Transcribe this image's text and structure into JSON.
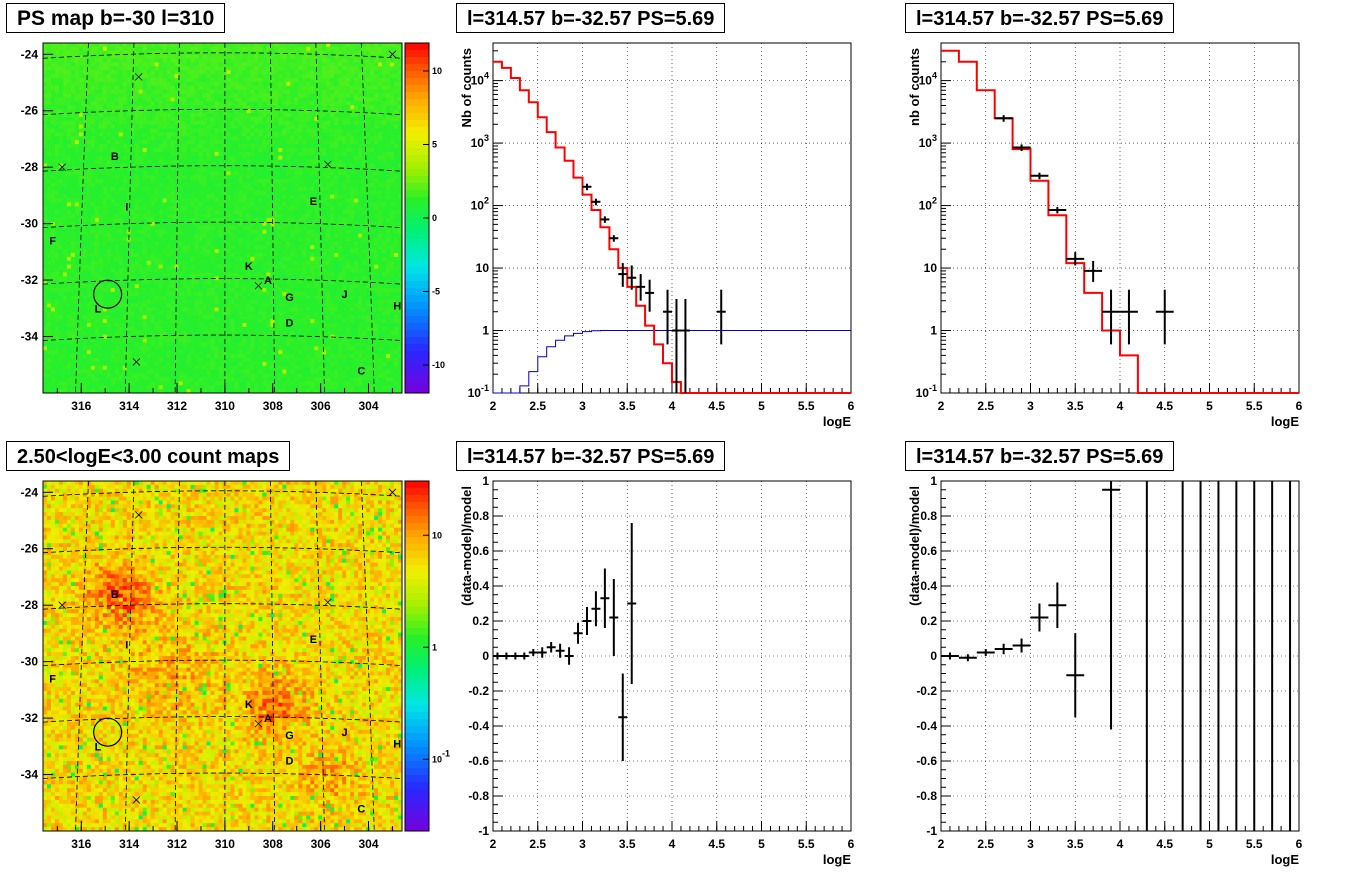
{
  "titles": {
    "map_ps": "PS map b=-30 l=310",
    "map_counts": "2.50<logE<3.00 count maps",
    "spec_a": "l=314.57 b=-32.57 PS=5.69",
    "spec_b": "l=314.57 b=-32.57 PS=5.69",
    "res_a": "l=314.57 b=-32.57 PS=5.69",
    "res_b": "l=314.57 b=-32.57 PS=5.69"
  },
  "maps": {
    "x_ticks": [
      "316",
      "314",
      "312",
      "310",
      "308",
      "306",
      "304"
    ],
    "y_ticks": [
      "-24",
      "-26",
      "-28",
      "-30",
      "-32",
      "-34"
    ],
    "xlim": [
      317.6,
      302.6
    ],
    "ylim": [
      -36,
      -23.6
    ],
    "ps_colorbar_ticks": [
      "10",
      "5",
      "0",
      "-5",
      "-10"
    ],
    "counts_colorbar_ticks": [
      "10",
      "1",
      "10-1"
    ],
    "sources": [
      {
        "label": "B",
        "l": 314.6,
        "b": -27.6
      },
      {
        "label": "I",
        "l": 314.1,
        "b": -29.4
      },
      {
        "label": "E",
        "l": 306.3,
        "b": -29.2
      },
      {
        "label": "F",
        "l": 317.2,
        "b": -30.6
      },
      {
        "label": "K",
        "l": 309.0,
        "b": -31.5
      },
      {
        "label": "A",
        "l": 308.2,
        "b": -32.0
      },
      {
        "label": "G",
        "l": 307.3,
        "b": -32.6
      },
      {
        "label": "J",
        "l": 305.0,
        "b": -32.5
      },
      {
        "label": "H",
        "l": 302.8,
        "b": -32.9
      },
      {
        "label": "D",
        "l": 307.3,
        "b": -33.5
      },
      {
        "label": "L",
        "l": 315.3,
        "b": -33.0
      },
      {
        "label": "C",
        "l": 304.3,
        "b": -35.2
      }
    ],
    "crosses": [
      {
        "l": 313.6,
        "b": -24.8
      },
      {
        "l": 303.0,
        "b": -24.0
      },
      {
        "l": 316.8,
        "b": -28.0
      },
      {
        "l": 305.7,
        "b": -27.9
      },
      {
        "l": 308.6,
        "b": -32.2
      },
      {
        "l": 313.7,
        "b": -34.9
      }
    ],
    "circle": {
      "l": 314.9,
      "b": -32.5
    }
  },
  "spectra": {
    "ylabel_a": "Nb of counts",
    "ylabel_b": "nb of counts",
    "xlabel": "logE",
    "xlim": [
      2,
      6
    ],
    "x_ticks": [
      "2",
      "2.5",
      "3",
      "3.5",
      "4",
      "4.5",
      "5",
      "5.5",
      "6"
    ],
    "y_ticks": [
      "10-1",
      "1",
      "10",
      "102",
      "103",
      "104"
    ],
    "ylim": [
      0.1,
      40000
    ],
    "colors": {
      "model": "#ff0000",
      "data": "#000000",
      "flat": "#0000cc"
    }
  },
  "residuals": {
    "ylabel": "(data-model)/model",
    "xlabel": "logE",
    "xlim": [
      2,
      6
    ],
    "ylim": [
      -1,
      1
    ],
    "x_ticks": [
      "2",
      "2.5",
      "3",
      "3.5",
      "4",
      "4.5",
      "5",
      "5.5",
      "6"
    ],
    "y_ticks": [
      "1",
      "0.8",
      "0.6",
      "0.4",
      "0.2",
      "0",
      "-0.2",
      "-0.4",
      "-0.6",
      "-0.8",
      "-1"
    ]
  },
  "chart_data": [
    {
      "type": "line",
      "name": "spectrum_fine",
      "xlabel": "logE",
      "ylabel": "Nb of counts",
      "xlim": [
        2,
        6
      ],
      "ylim": [
        0.1,
        40000
      ],
      "log_y": true,
      "grid": true,
      "model_step": {
        "edges": [
          2.0,
          2.1,
          2.2,
          2.3,
          2.4,
          2.5,
          2.6,
          2.7,
          2.8,
          2.9,
          3.0,
          3.1,
          3.2,
          3.3,
          3.4,
          3.5,
          3.6,
          3.7,
          3.8,
          3.9,
          4.0,
          4.1,
          4.2,
          6.0
        ],
        "values": [
          20000,
          16000,
          11000,
          7000,
          4500,
          2600,
          1500,
          850,
          520,
          280,
          150,
          85,
          45,
          20,
          10,
          5,
          2.5,
          1.2,
          0.6,
          0.3,
          0.15,
          0.1,
          0.1
        ]
      },
      "flat_step": {
        "edges": [
          2.0,
          2.3,
          2.4,
          2.5,
          2.6,
          2.7,
          2.8,
          2.9,
          3.0,
          3.1,
          3.2,
          6.0
        ],
        "values": [
          0.1,
          0.13,
          0.22,
          0.38,
          0.55,
          0.7,
          0.82,
          0.9,
          0.96,
          0.99,
          1.0
        ]
      },
      "data_points": [
        {
          "x": 3.05,
          "y": 200,
          "xerr": 0.05
        },
        {
          "x": 3.15,
          "y": 115,
          "xerr": 0.05
        },
        {
          "x": 3.25,
          "y": 60,
          "xerr": 0.05
        },
        {
          "x": 3.35,
          "y": 30,
          "xerr": 0.05
        },
        {
          "x": 3.45,
          "y": 8,
          "xerr": 0.05,
          "lo": 5,
          "hi": 12
        },
        {
          "x": 3.55,
          "y": 7,
          "xerr": 0.05,
          "lo": 4.5,
          "hi": 11
        },
        {
          "x": 3.65,
          "y": 5,
          "xerr": 0.05,
          "lo": 3,
          "hi": 8
        },
        {
          "x": 3.75,
          "y": 4,
          "xerr": 0.05,
          "lo": 2,
          "hi": 6.5
        },
        {
          "x": 3.95,
          "y": 2,
          "xerr": 0.05,
          "lo": 0.6,
          "hi": 4.5
        },
        {
          "x": 4.05,
          "y": 1,
          "xerr": 0.05,
          "lo": 0.1,
          "hi": 3.2
        },
        {
          "x": 4.15,
          "y": 1,
          "xerr": 0.05,
          "lo": 0.1,
          "hi": 3.2
        },
        {
          "x": 4.55,
          "y": 2,
          "xerr": 0.05,
          "lo": 0.6,
          "hi": 4.5
        }
      ]
    },
    {
      "type": "line",
      "name": "spectrum_coarse",
      "xlabel": "logE",
      "ylabel": "nb of counts",
      "xlim": [
        2,
        6
      ],
      "ylim": [
        0.1,
        40000
      ],
      "log_y": true,
      "grid": true,
      "model_step": {
        "edges": [
          2.0,
          2.2,
          2.4,
          2.6,
          2.8,
          3.0,
          3.2,
          3.4,
          3.6,
          3.8,
          4.0,
          4.2,
          6.0
        ],
        "values": [
          30000,
          20000,
          7000,
          2500,
          800,
          250,
          70,
          12,
          4,
          1,
          0.4,
          0.1
        ]
      },
      "data_points": [
        {
          "x": 2.7,
          "y": 2500,
          "xerr": 0.1
        },
        {
          "x": 2.9,
          "y": 850,
          "xerr": 0.1
        },
        {
          "x": 3.1,
          "y": 300,
          "xerr": 0.1
        },
        {
          "x": 3.3,
          "y": 85,
          "xerr": 0.1
        },
        {
          "x": 3.5,
          "y": 14,
          "xerr": 0.1,
          "lo": 11,
          "hi": 18
        },
        {
          "x": 3.7,
          "y": 9,
          "xerr": 0.1,
          "lo": 6,
          "hi": 13
        },
        {
          "x": 3.9,
          "y": 2,
          "xerr": 0.1,
          "lo": 0.6,
          "hi": 4.5
        },
        {
          "x": 4.1,
          "y": 2,
          "xerr": 0.1,
          "lo": 0.6,
          "hi": 4.5
        },
        {
          "x": 4.5,
          "y": 2,
          "xerr": 0.1,
          "lo": 0.6,
          "hi": 4.5
        }
      ]
    },
    {
      "type": "scatter",
      "name": "residual_fine",
      "xlabel": "logE",
      "ylabel": "(data-model)/model",
      "xlim": [
        2,
        6
      ],
      "ylim": [
        -1,
        1
      ],
      "grid": true,
      "points": [
        {
          "x": 2.05,
          "y": 0.0,
          "err": 0.02
        },
        {
          "x": 2.15,
          "y": 0.0,
          "err": 0.02
        },
        {
          "x": 2.25,
          "y": 0.0,
          "err": 0.02
        },
        {
          "x": 2.35,
          "y": 0.0,
          "err": 0.02
        },
        {
          "x": 2.45,
          "y": 0.02,
          "err": 0.02
        },
        {
          "x": 2.55,
          "y": 0.02,
          "err": 0.03
        },
        {
          "x": 2.65,
          "y": 0.05,
          "err": 0.03
        },
        {
          "x": 2.75,
          "y": 0.03,
          "err": 0.04
        },
        {
          "x": 2.85,
          "y": 0.0,
          "err": 0.05
        },
        {
          "x": 2.95,
          "y": 0.13,
          "err": 0.06
        },
        {
          "x": 3.05,
          "y": 0.2,
          "err": 0.08
        },
        {
          "x": 3.15,
          "y": 0.27,
          "err": 0.1
        },
        {
          "x": 3.25,
          "y": 0.33,
          "err": 0.17
        },
        {
          "x": 3.35,
          "y": 0.22,
          "err": 0.22
        },
        {
          "x": 3.45,
          "y": -0.35,
          "err": 0.25
        },
        {
          "x": 3.55,
          "y": 0.3,
          "err": 0.46
        }
      ]
    },
    {
      "type": "scatter",
      "name": "residual_coarse",
      "xlabel": "logE",
      "ylabel": "(data-model)/model",
      "xlim": [
        2,
        6
      ],
      "ylim": [
        -1,
        1
      ],
      "grid": true,
      "points": [
        {
          "x": 2.1,
          "y": 0.0,
          "err": 0.02
        },
        {
          "x": 2.3,
          "y": -0.01,
          "err": 0.02
        },
        {
          "x": 2.5,
          "y": 0.02,
          "err": 0.02
        },
        {
          "x": 2.7,
          "y": 0.04,
          "err": 0.03
        },
        {
          "x": 2.9,
          "y": 0.06,
          "err": 0.04
        },
        {
          "x": 3.1,
          "y": 0.22,
          "err": 0.08
        },
        {
          "x": 3.3,
          "y": 0.29,
          "err": 0.13
        },
        {
          "x": 3.5,
          "y": -0.11,
          "err": 0.24
        },
        {
          "x": 3.9,
          "y": 0.95,
          "lo": -0.42,
          "hi": 1.0
        },
        {
          "x": 4.3,
          "y": 1.0,
          "lo": -1.0,
          "hi": 1.0,
          "noh": true
        },
        {
          "x": 4.7,
          "y": 1.0,
          "lo": -1.0,
          "hi": 1.0,
          "noh": true
        },
        {
          "x": 4.9,
          "y": 1.0,
          "lo": -1.0,
          "hi": 1.0,
          "noh": true
        },
        {
          "x": 5.1,
          "y": 1.0,
          "lo": -1.0,
          "hi": 1.0,
          "noh": true
        },
        {
          "x": 5.3,
          "y": 1.0,
          "lo": -1.0,
          "hi": 1.0,
          "noh": true
        },
        {
          "x": 5.5,
          "y": 1.0,
          "lo": -1.0,
          "hi": 1.0,
          "noh": true
        },
        {
          "x": 5.7,
          "y": 1.0,
          "lo": -1.0,
          "hi": 1.0,
          "noh": true
        },
        {
          "x": 5.9,
          "y": 1.0,
          "lo": -1.0,
          "hi": 1.0,
          "noh": true
        }
      ]
    }
  ]
}
